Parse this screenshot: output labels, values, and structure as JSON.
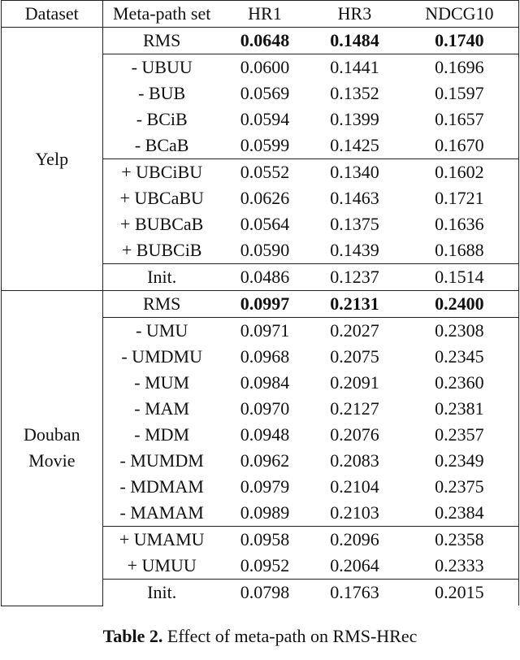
{
  "headers": [
    "Dataset",
    "Meta-path set",
    "HR1",
    "HR3",
    "NDCG10"
  ],
  "datasets": [
    {
      "name_lines": [
        "Yelp"
      ],
      "groups": [
        [
          {
            "set": "RMS",
            "hr1": "0.0648",
            "hr3": "0.1484",
            "ndcg10": "0.1740",
            "bold": true
          }
        ],
        [
          {
            "set": "- UBUU",
            "hr1": "0.0600",
            "hr3": "0.1441",
            "ndcg10": "0.1696"
          },
          {
            "set": "- BUB",
            "hr1": "0.0569",
            "hr3": "0.1352",
            "ndcg10": "0.1597"
          },
          {
            "set": "- BCiB",
            "hr1": "0.0594",
            "hr3": "0.1399",
            "ndcg10": "0.1657"
          },
          {
            "set": "- BCaB",
            "hr1": "0.0599",
            "hr3": "0.1425",
            "ndcg10": "0.1670"
          }
        ],
        [
          {
            "set": "+ UBCiBU",
            "hr1": "0.0552",
            "hr3": "0.1340",
            "ndcg10": "0.1602"
          },
          {
            "set": "+ UBCaBU",
            "hr1": "0.0626",
            "hr3": "0.1463",
            "ndcg10": "0.1721"
          },
          {
            "set": "+ BUBCaB",
            "hr1": "0.0564",
            "hr3": "0.1375",
            "ndcg10": "0.1636"
          },
          {
            "set": "+ BUBCiB",
            "hr1": "0.0590",
            "hr3": "0.1439",
            "ndcg10": "0.1688"
          }
        ],
        [
          {
            "set": "Init.",
            "hr1": "0.0486",
            "hr3": "0.1237",
            "ndcg10": "0.1514"
          }
        ]
      ]
    },
    {
      "name_lines": [
        "Douban",
        "Movie"
      ],
      "groups": [
        [
          {
            "set": "RMS",
            "hr1": "0.0997",
            "hr3": "0.2131",
            "ndcg10": "0.2400",
            "bold": true
          }
        ],
        [
          {
            "set": "- UMU",
            "hr1": "0.0971",
            "hr3": "0.2027",
            "ndcg10": "0.2308"
          },
          {
            "set": "- UMDMU",
            "hr1": "0.0968",
            "hr3": "0.2075",
            "ndcg10": "0.2345"
          },
          {
            "set": "- MUM",
            "hr1": "0.0984",
            "hr3": "0.2091",
            "ndcg10": "0.2360"
          },
          {
            "set": "- MAM",
            "hr1": "0.0970",
            "hr3": "0.2127",
            "ndcg10": "0.2381"
          },
          {
            "set": "- MDM",
            "hr1": "0.0948",
            "hr3": "0.2076",
            "ndcg10": "0.2357"
          },
          {
            "set": "- MUMDM",
            "hr1": "0.0962",
            "hr3": "0.2083",
            "ndcg10": "0.2349"
          },
          {
            "set": "- MDMAM",
            "hr1": "0.0979",
            "hr3": "0.2104",
            "ndcg10": "0.2375"
          },
          {
            "set": "- MAMAM",
            "hr1": "0.0989",
            "hr3": "0.2103",
            "ndcg10": "0.2384"
          }
        ],
        [
          {
            "set": "+ UMAMU",
            "hr1": "0.0958",
            "hr3": "0.2096",
            "ndcg10": "0.2358"
          },
          {
            "set": "+ UMUU",
            "hr1": "0.0952",
            "hr3": "0.2064",
            "ndcg10": "0.2333"
          }
        ],
        [
          {
            "set": "Init.",
            "hr1": "0.0798",
            "hr3": "0.1763",
            "ndcg10": "0.2015"
          }
        ]
      ]
    }
  ],
  "caption": {
    "label": "Table 2.",
    "text": " Effect of meta-path on RMS-HRec"
  }
}
